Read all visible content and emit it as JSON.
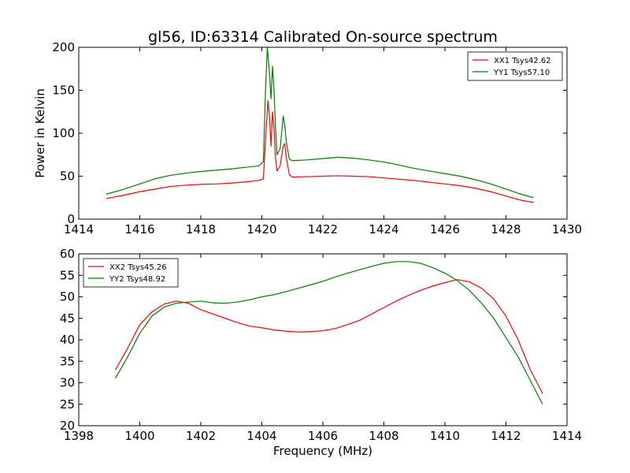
{
  "figure": {
    "title": "gl56, ID:63314 Calibrated On-source spectrum",
    "xlabel": "Frequency (MHz)"
  },
  "colors": {
    "red": "#ff0000",
    "green": "#008000"
  },
  "chart_data": [
    {
      "type": "line",
      "title": "gl56, ID:63314 Calibrated On-source spectrum",
      "xlabel": "",
      "ylabel": "Power in Kelvin",
      "xlim": [
        1414,
        1430
      ],
      "ylim": [
        0,
        200
      ],
      "xticks": [
        1414,
        1416,
        1418,
        1420,
        1422,
        1424,
        1426,
        1428,
        1430
      ],
      "yticks": [
        0,
        50,
        100,
        150,
        200
      ],
      "grid": false,
      "legend_position": "top-right",
      "series": [
        {
          "name": "XX1 Tsys42.62",
          "color": "#ff0000",
          "points": [
            [
              1414.9,
              24
            ],
            [
              1415.5,
              28
            ],
            [
              1416,
              32
            ],
            [
              1416.5,
              35
            ],
            [
              1417,
              38
            ],
            [
              1417.5,
              39.5
            ],
            [
              1418,
              40.5
            ],
            [
              1418.5,
              41
            ],
            [
              1419,
              42
            ],
            [
              1419.5,
              43.5
            ],
            [
              1419.9,
              45
            ],
            [
              1420.05,
              47
            ],
            [
              1420.15,
              110
            ],
            [
              1420.2,
              138
            ],
            [
              1420.25,
              120
            ],
            [
              1420.3,
              85
            ],
            [
              1420.35,
              125
            ],
            [
              1420.4,
              105
            ],
            [
              1420.45,
              70
            ],
            [
              1420.5,
              56
            ],
            [
              1420.6,
              62
            ],
            [
              1420.7,
              85
            ],
            [
              1420.75,
              88
            ],
            [
              1420.8,
              72
            ],
            [
              1420.9,
              52
            ],
            [
              1421,
              49
            ],
            [
              1421.5,
              49.5
            ],
            [
              1422,
              50
            ],
            [
              1422.5,
              50.5
            ],
            [
              1423,
              50
            ],
            [
              1423.5,
              49.5
            ],
            [
              1424,
              48
            ],
            [
              1424.5,
              46.5
            ],
            [
              1425,
              45
            ],
            [
              1425.5,
              43
            ],
            [
              1426,
              41
            ],
            [
              1426.5,
              39
            ],
            [
              1427,
              36
            ],
            [
              1427.5,
              32
            ],
            [
              1428,
              27
            ],
            [
              1428.5,
              22
            ],
            [
              1428.9,
              19.5
            ]
          ]
        },
        {
          "name": "YY1 Tsys57.10",
          "color": "#008000",
          "points": [
            [
              1414.9,
              29
            ],
            [
              1415.5,
              35
            ],
            [
              1416,
              41
            ],
            [
              1416.5,
              47
            ],
            [
              1417,
              51
            ],
            [
              1417.5,
              53.5
            ],
            [
              1418,
              55.5
            ],
            [
              1418.5,
              57
            ],
            [
              1419,
              58.5
            ],
            [
              1419.5,
              60.5
            ],
            [
              1419.9,
              62
            ],
            [
              1420.05,
              67
            ],
            [
              1420.12,
              150
            ],
            [
              1420.18,
              200
            ],
            [
              1420.25,
              170
            ],
            [
              1420.3,
              140
            ],
            [
              1420.35,
              178
            ],
            [
              1420.4,
              150
            ],
            [
              1420.45,
              105
            ],
            [
              1420.5,
              75
            ],
            [
              1420.6,
              82
            ],
            [
              1420.7,
              120
            ],
            [
              1420.75,
              110
            ],
            [
              1420.8,
              90
            ],
            [
              1420.9,
              70
            ],
            [
              1421,
              68
            ],
            [
              1421.5,
              69
            ],
            [
              1422,
              70.5
            ],
            [
              1422.5,
              72
            ],
            [
              1423,
              71
            ],
            [
              1423.5,
              69
            ],
            [
              1424,
              66.5
            ],
            [
              1424.5,
              63
            ],
            [
              1425,
              59
            ],
            [
              1425.5,
              56
            ],
            [
              1426,
              53
            ],
            [
              1426.5,
              50
            ],
            [
              1427,
              46
            ],
            [
              1427.5,
              41
            ],
            [
              1428,
              35
            ],
            [
              1428.5,
              29
            ],
            [
              1428.9,
              25
            ]
          ]
        }
      ]
    },
    {
      "type": "line",
      "title": "",
      "xlabel": "Frequency (MHz)",
      "ylabel": "",
      "xlim": [
        1398,
        1414
      ],
      "ylim": [
        20,
        60
      ],
      "xticks": [
        1398,
        1400,
        1402,
        1404,
        1406,
        1408,
        1410,
        1412,
        1414
      ],
      "yticks": [
        20,
        25,
        30,
        35,
        40,
        45,
        50,
        55,
        60
      ],
      "grid": false,
      "legend_position": "top-left",
      "series": [
        {
          "name": "XX2 Tsys45.26",
          "color": "#ff0000",
          "points": [
            [
              1399.2,
              33
            ],
            [
              1399.6,
              38
            ],
            [
              1400,
              43.5
            ],
            [
              1400.4,
              46.5
            ],
            [
              1400.8,
              48.3
            ],
            [
              1401.2,
              49
            ],
            [
              1401.6,
              48.5
            ],
            [
              1402,
              47
            ],
            [
              1402.4,
              46
            ],
            [
              1402.8,
              45
            ],
            [
              1403.2,
              44
            ],
            [
              1403.6,
              43.2
            ],
            [
              1404,
              42.8
            ],
            [
              1404.4,
              42.3
            ],
            [
              1404.8,
              42
            ],
            [
              1405.2,
              41.8
            ],
            [
              1405.6,
              41.9
            ],
            [
              1406,
              42.1
            ],
            [
              1406.4,
              42.6
            ],
            [
              1406.8,
              43.5
            ],
            [
              1407.2,
              44.5
            ],
            [
              1407.6,
              46
            ],
            [
              1408,
              47.5
            ],
            [
              1408.4,
              49
            ],
            [
              1408.8,
              50.3
            ],
            [
              1409.2,
              51.5
            ],
            [
              1409.6,
              52.5
            ],
            [
              1410,
              53.3
            ],
            [
              1410.4,
              54
            ],
            [
              1410.8,
              53.5
            ],
            [
              1411.2,
              52
            ],
            [
              1411.6,
              49.5
            ],
            [
              1412,
              45.5
            ],
            [
              1412.4,
              40
            ],
            [
              1412.8,
              33
            ],
            [
              1413.2,
              27.5
            ]
          ]
        },
        {
          "name": "YY2 Tsys48.92",
          "color": "#008000",
          "points": [
            [
              1399.2,
              31
            ],
            [
              1399.6,
              36
            ],
            [
              1400,
              41.5
            ],
            [
              1400.4,
              45.5
            ],
            [
              1400.8,
              47.6
            ],
            [
              1401.2,
              48.5
            ],
            [
              1401.6,
              48.8
            ],
            [
              1402,
              49
            ],
            [
              1402.4,
              48.6
            ],
            [
              1402.8,
              48.5
            ],
            [
              1403.2,
              48.8
            ],
            [
              1403.6,
              49.3
            ],
            [
              1404,
              50
            ],
            [
              1404.4,
              50.5
            ],
            [
              1404.8,
              51.2
            ],
            [
              1405.2,
              52
            ],
            [
              1405.6,
              52.8
            ],
            [
              1406,
              53.6
            ],
            [
              1406.4,
              54.6
            ],
            [
              1406.8,
              55.5
            ],
            [
              1407.2,
              56.3
            ],
            [
              1407.6,
              57.1
            ],
            [
              1408,
              57.8
            ],
            [
              1408.4,
              58.2
            ],
            [
              1408.8,
              58.2
            ],
            [
              1409.2,
              57.8
            ],
            [
              1409.6,
              56.8
            ],
            [
              1410,
              55.5
            ],
            [
              1410.4,
              53.8
            ],
            [
              1410.8,
              51.5
            ],
            [
              1411.2,
              48.5
            ],
            [
              1411.6,
              45
            ],
            [
              1412,
              40.5
            ],
            [
              1412.4,
              36
            ],
            [
              1412.8,
              30.5
            ],
            [
              1413.2,
              25
            ]
          ]
        }
      ]
    }
  ]
}
